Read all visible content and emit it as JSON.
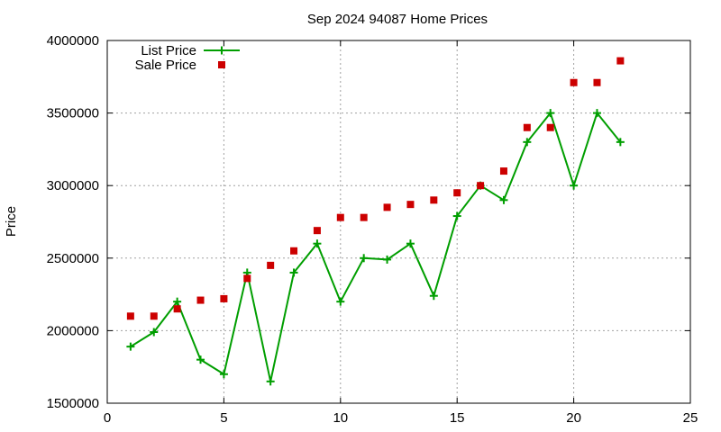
{
  "chart_data": {
    "type": "line",
    "title": "Sep 2024 94087 Home Prices",
    "xlabel": "",
    "ylabel": "Price",
    "xlim": [
      0,
      25
    ],
    "ylim": [
      1500000,
      4000000
    ],
    "x_ticks": [
      0,
      5,
      10,
      15,
      20,
      25
    ],
    "y_ticks": [
      1500000,
      2000000,
      2500000,
      3000000,
      3500000,
      4000000
    ],
    "x_tick_labels": [
      "0",
      "5",
      "10",
      "15",
      "20",
      "25"
    ],
    "y_tick_labels": [
      "1500000",
      "2000000",
      "2500000",
      "3000000",
      "3500000",
      "4000000"
    ],
    "grid": true,
    "legend_position": "top-left",
    "series": [
      {
        "name": "List Price",
        "style": "line-plus",
        "color": "#009e00",
        "x": [
          1,
          2,
          3,
          4,
          5,
          6,
          7,
          8,
          9,
          10,
          11,
          12,
          13,
          14,
          15,
          16,
          17,
          18,
          19,
          20,
          21,
          22
        ],
        "y": [
          1890000,
          1990000,
          2200000,
          1800000,
          1700000,
          2400000,
          1650000,
          2400000,
          2600000,
          2200000,
          2500000,
          2490000,
          2600000,
          2240000,
          2790000,
          3000000,
          2900000,
          3300000,
          3500000,
          3000000,
          3500000,
          3300000
        ]
      },
      {
        "name": "Sale Price",
        "style": "square",
        "color": "#cc0000",
        "x": [
          1,
          2,
          3,
          4,
          5,
          6,
          7,
          8,
          9,
          10,
          11,
          12,
          13,
          14,
          15,
          16,
          17,
          18,
          19,
          20,
          21,
          22
        ],
        "y": [
          2100000,
          2100000,
          2150000,
          2210000,
          2220000,
          2360000,
          2450000,
          2550000,
          2690000,
          2780000,
          2780000,
          2850000,
          2870000,
          2900000,
          2950000,
          3000000,
          3100000,
          3400000,
          3400000,
          3710000,
          3710000,
          3860000
        ]
      }
    ]
  }
}
